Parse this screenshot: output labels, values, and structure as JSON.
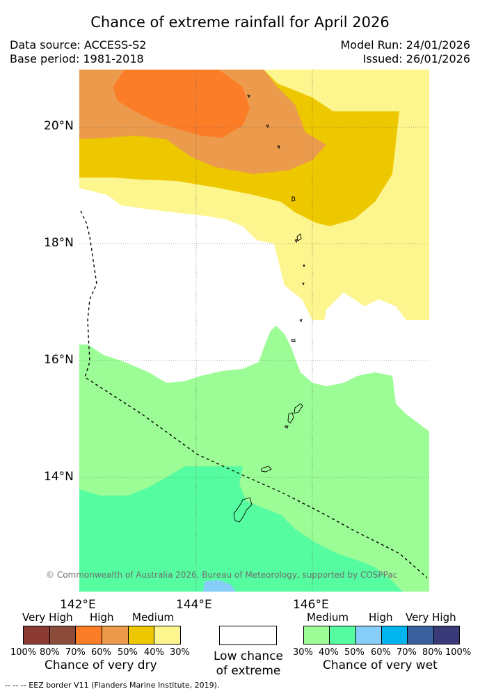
{
  "title": "Chance of extreme rainfall for April 2026",
  "header": {
    "data_source": "Data source: ACCESS-S2",
    "base_period": "Base period: 1981-2018",
    "model_run": "Model Run: 24/01/2026",
    "issued": "Issued: 26/01/2026"
  },
  "map": {
    "lat_labels": [
      "20°N",
      "18°N",
      "16°N",
      "14°N"
    ],
    "lon_labels": [
      "142°E",
      "144°E",
      "146°E"
    ],
    "copyright": "© Commonwealth of Australia 2026, Bureau of Meteorology, supported by COSPPac",
    "colors": {
      "dry_30": "#fdf58e",
      "dry_40": "#edc800",
      "dry_50": "#eb9b4b",
      "dry_60": "#fc7d28",
      "wet_30": "#9cfc96",
      "wet_40": "#55fca0",
      "wet_50": "#87cdfa",
      "low_chance": "#ffffff"
    }
  },
  "legend": {
    "dry": {
      "levels": [
        "Very High",
        "High",
        "Medium"
      ],
      "colors": [
        "#8b3a34",
        "#8b4d3a",
        "#fc7d28",
        "#eb9b4b",
        "#edc800",
        "#fdf58e"
      ],
      "ticks": [
        "100%",
        "80%",
        "70%",
        "60%",
        "50%",
        "40%",
        "30%"
      ],
      "caption": "Chance of very dry"
    },
    "neutral": {
      "line1": "Low chance",
      "line2": "of extreme"
    },
    "wet": {
      "levels": [
        "Medium",
        "High",
        "Very High"
      ],
      "colors": [
        "#9cfc96",
        "#55fca0",
        "#87cdfa",
        "#00b5ef",
        "#3a60a0",
        "#3a3a78"
      ],
      "ticks": [
        "30%",
        "40%",
        "50%",
        "60%",
        "70%",
        "80%",
        "100%"
      ],
      "caption": "Chance of very wet"
    }
  },
  "footer": "--  --  -- EEZ border V11 (Flanders Marine Institute, 2019)."
}
